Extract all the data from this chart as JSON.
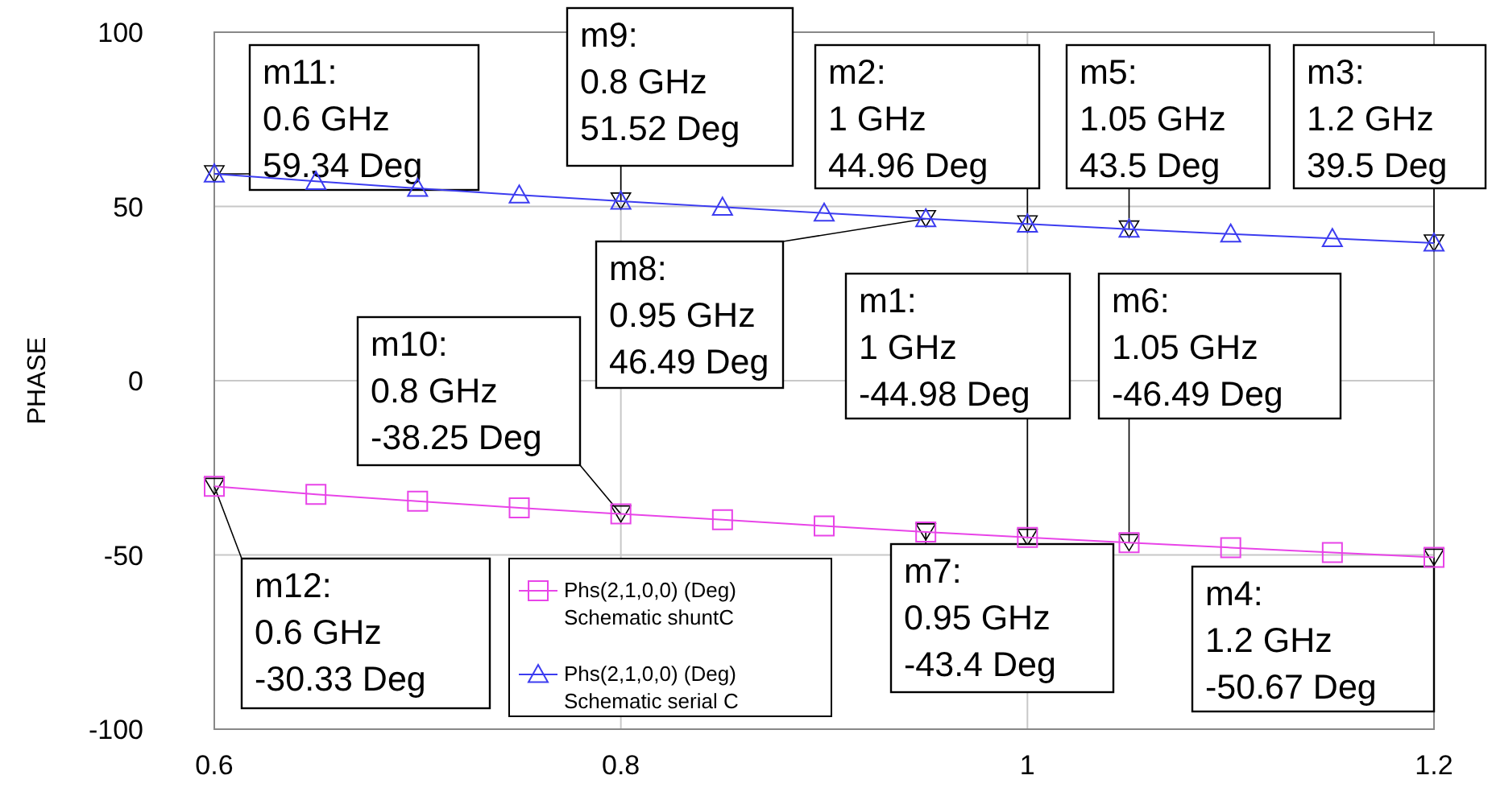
{
  "chart_data": {
    "type": "line",
    "ylabel": "PHASE",
    "x": [
      0.6,
      0.65,
      0.7,
      0.75,
      0.8,
      0.85,
      0.9,
      0.95,
      1.0,
      1.05,
      1.1,
      1.15,
      1.2
    ],
    "xlim": [
      0.6,
      1.2
    ],
    "xticks": [
      0.6,
      0.8,
      1,
      1.2
    ],
    "ylim": [
      -100,
      100
    ],
    "yticks": [
      -100,
      -50,
      0,
      50,
      100
    ],
    "grid": true,
    "legend": "bottom",
    "series": [
      {
        "name": "Phs(2,1,0,0) (Deg)\nSchematic shuntC",
        "color": "#e844e8",
        "marker": "square",
        "values": [
          -30.33,
          -32.6,
          -34.6,
          -36.5,
          -38.25,
          -39.9,
          -41.7,
          -43.4,
          -44.98,
          -46.49,
          -47.9,
          -49.3,
          -50.67
        ]
      },
      {
        "name": "Phs(2,1,0,0) (Deg)\nSchematic serial C",
        "color": "#3c3cf0",
        "marker": "triangle",
        "values": [
          59.34,
          57.2,
          55.2,
          53.3,
          51.52,
          49.8,
          48.1,
          46.49,
          44.96,
          43.5,
          42.1,
          40.8,
          39.5
        ]
      }
    ],
    "annotations": [
      {
        "text": "m11:\n0.6 GHz\n59.34 Deg",
        "x": 0.6,
        "y": 59.34
      },
      {
        "text": "m9:\n0.8 GHz\n51.52 Deg",
        "x": 0.8,
        "y": 51.52
      },
      {
        "text": "m2:\n1 GHz\n44.96 Deg",
        "x": 1,
        "y": 44.96
      },
      {
        "text": "m5:\n1.05 GHz\n43.5 Deg",
        "x": 1.05,
        "y": 43.5
      },
      {
        "text": "m3:\n1.2 GHz\n39.5 Deg",
        "x": 1.2,
        "y": 39.5
      },
      {
        "text": "m8:\n0.95 GHz\n46.49 Deg",
        "x": 0.95,
        "y": 46.49
      },
      {
        "text": "m1:\n1 GHz\n-44.98 Deg",
        "x": 1,
        "y": -44.98
      },
      {
        "text": "m6:\n1.05 GHz\n-46.49 Deg",
        "x": 1.05,
        "y": -46.49
      },
      {
        "text": "m10:\n0.8 GHz\n-38.25 Deg",
        "x": 0.8,
        "y": -38.25
      },
      {
        "text": "m12:\n0.6 GHz\n-30.33 Deg",
        "x": 0.6,
        "y": -30.33
      },
      {
        "text": "m7:\n0.95 GHz\n-43.4 Deg",
        "x": 0.95,
        "y": -43.4
      },
      {
        "text": "m4:\n1.2 GHz\n-50.67 Deg",
        "x": 1.2,
        "y": -50.67
      }
    ]
  }
}
